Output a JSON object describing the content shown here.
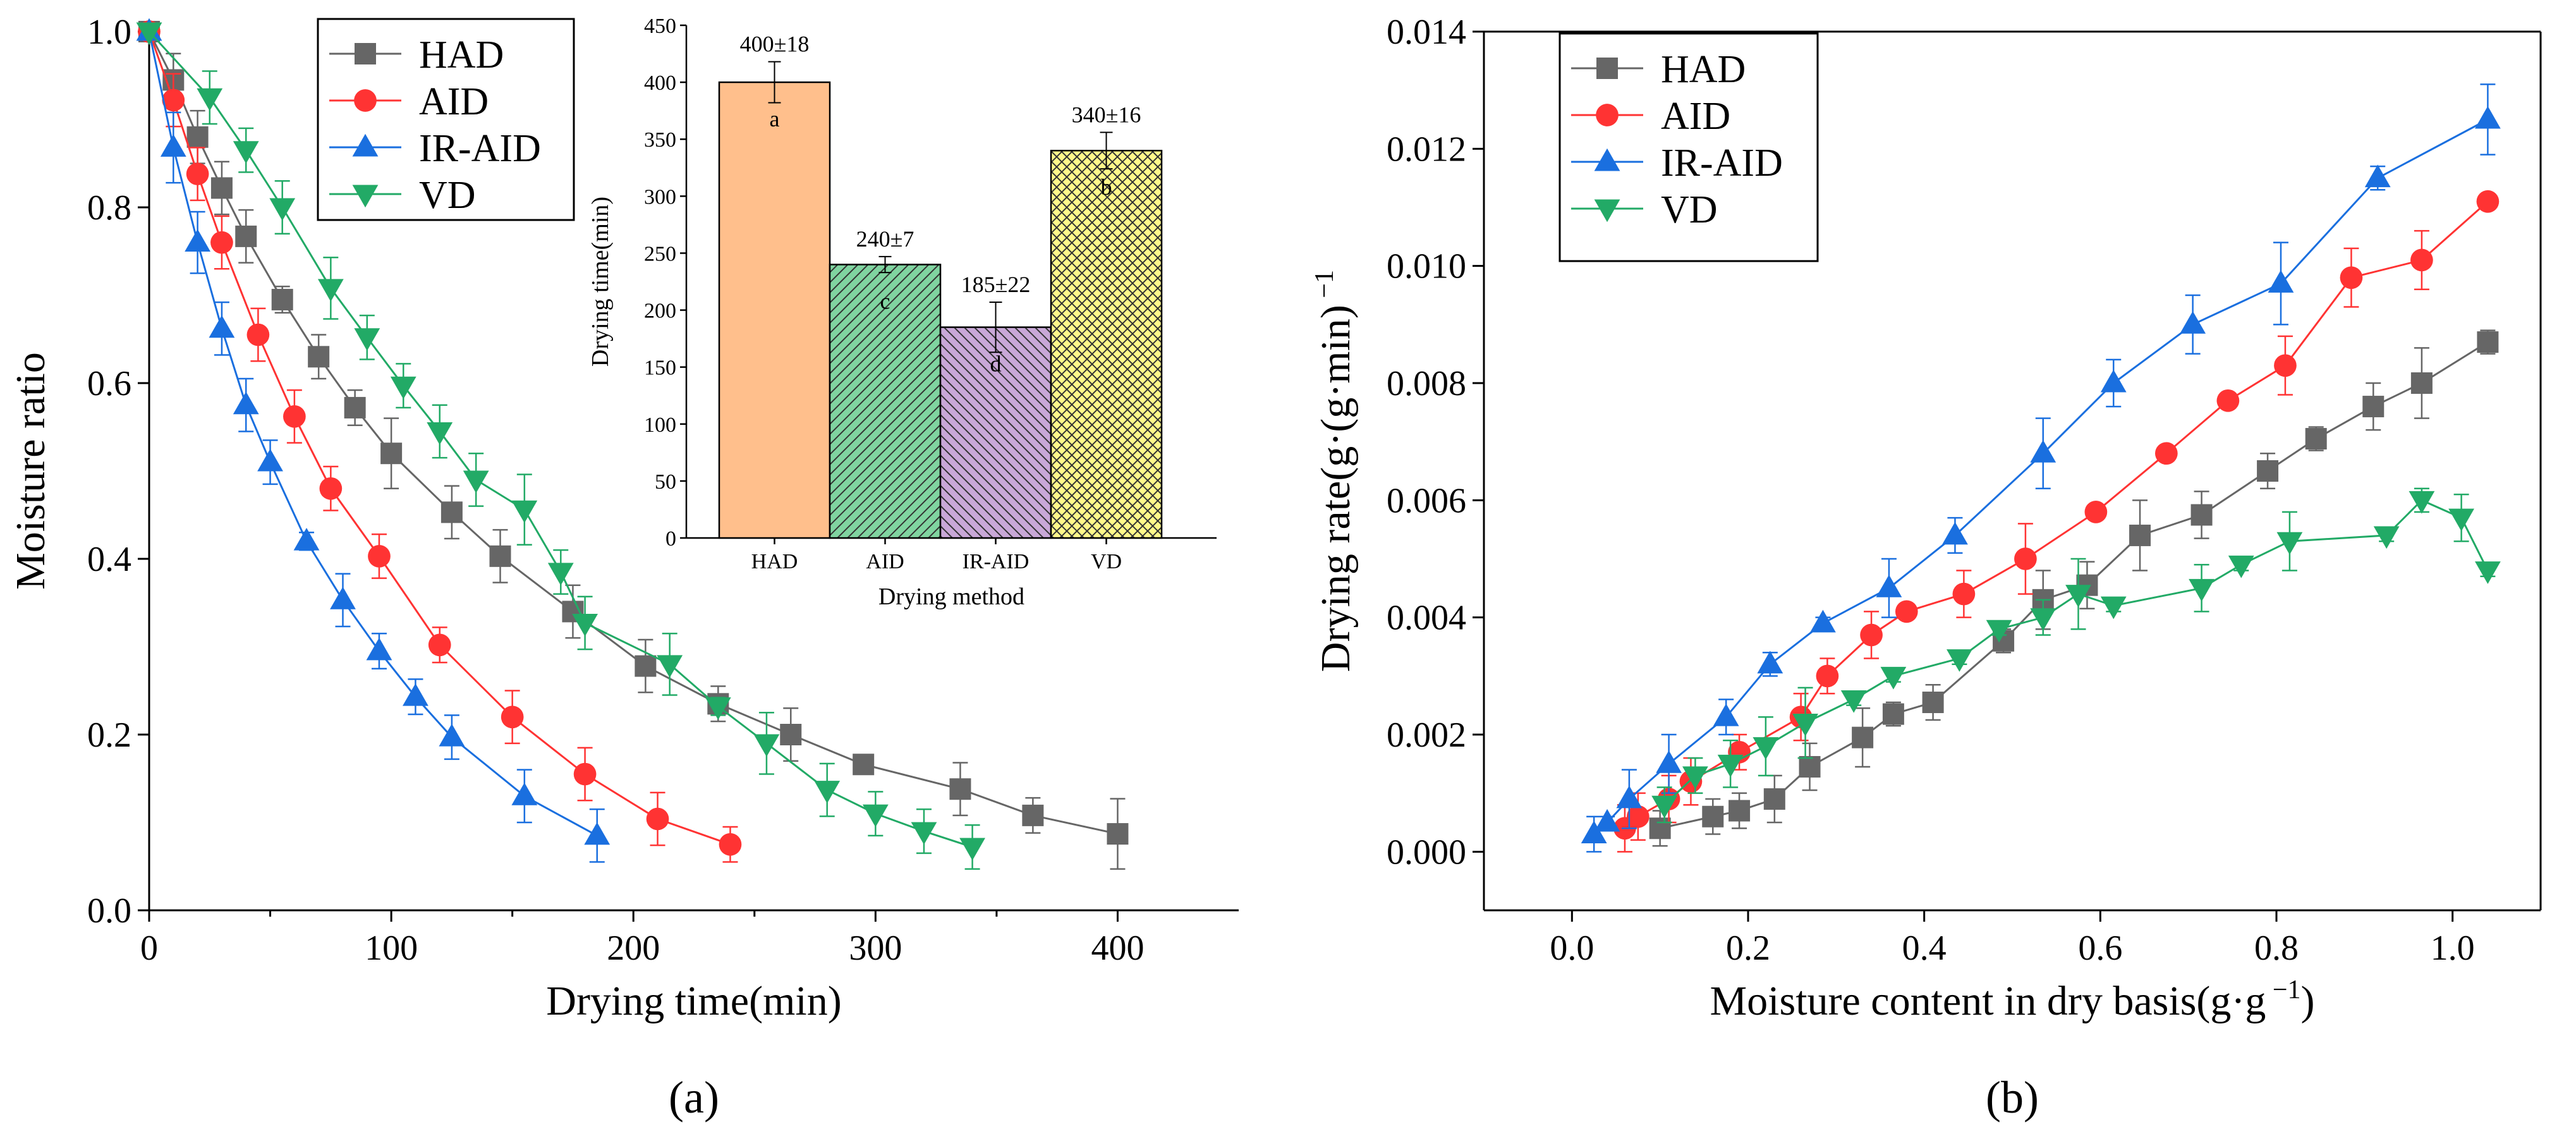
{
  "chart_data": [
    {
      "id": "a",
      "panel_label": "(a)",
      "type": "line",
      "xlabel": "Drying time(min)",
      "ylabel": "Moisture ratio",
      "xlim": [
        0,
        450
      ],
      "ylim": [
        0,
        1.0
      ],
      "xticks": [
        "0",
        "100",
        "200",
        "300",
        "400"
      ],
      "yticks": [
        "0.0",
        "0.2",
        "0.4",
        "0.6",
        "0.8",
        "1.0"
      ],
      "legend_position": "top-left",
      "series": [
        {
          "name": "HAD",
          "color": "#666666",
          "marker": "square",
          "x": [
            0,
            10,
            20,
            30,
            40,
            55,
            70,
            85,
            100,
            125,
            145,
            175,
            205,
            235,
            265,
            295,
            335,
            365,
            400
          ],
          "y": [
            1.0,
            0.945,
            0.88,
            0.822,
            0.767,
            0.695,
            0.63,
            0.572,
            0.52,
            0.453,
            0.403,
            0.34,
            0.278,
            0.235,
            0.2,
            0.166,
            0.138,
            0.108,
            0.087
          ],
          "err": [
            0,
            0.03,
            0.03,
            0.03,
            0.03,
            0.015,
            0.025,
            0.02,
            0.04,
            0.03,
            0.03,
            0.03,
            0.03,
            0.02,
            0.03,
            0.01,
            0.03,
            0.02,
            0.04
          ]
        },
        {
          "name": "AID",
          "color": "#ff3333",
          "marker": "circle",
          "x": [
            0,
            10,
            20,
            30,
            45,
            60,
            75,
            95,
            120,
            150,
            180,
            210,
            240
          ],
          "y": [
            1.0,
            0.922,
            0.838,
            0.76,
            0.655,
            0.562,
            0.48,
            0.403,
            0.302,
            0.22,
            0.155,
            0.104,
            0.075
          ],
          "err": [
            0,
            0.03,
            0.03,
            0.03,
            0.03,
            0.03,
            0.025,
            0.025,
            0.02,
            0.03,
            0.03,
            0.03,
            0.02
          ]
        },
        {
          "name": "IR-AID",
          "color": "#1a6fdf",
          "marker": "triangle-up",
          "x": [
            0,
            10,
            20,
            30,
            40,
            50,
            65,
            80,
            95,
            110,
            125,
            155,
            185
          ],
          "y": [
            1.0,
            0.868,
            0.76,
            0.662,
            0.575,
            0.51,
            0.42,
            0.353,
            0.295,
            0.243,
            0.197,
            0.13,
            0.085
          ],
          "err": [
            0,
            0.04,
            0.035,
            0.03,
            0.03,
            0.025,
            0.01,
            0.03,
            0.02,
            0.02,
            0.025,
            0.03,
            0.03
          ]
        },
        {
          "name": "VD",
          "color": "#22aa66",
          "marker": "triangle-down",
          "x": [
            0,
            25,
            40,
            55,
            75,
            90,
            105,
            120,
            135,
            155,
            170,
            180,
            215,
            235,
            255,
            280,
            300,
            320,
            340
          ],
          "y": [
            1.0,
            0.925,
            0.865,
            0.8,
            0.708,
            0.652,
            0.597,
            0.545,
            0.49,
            0.456,
            0.385,
            0.327,
            0.28,
            0.232,
            0.19,
            0.137,
            0.11,
            0.09,
            0.072
          ],
          "err": [
            0,
            0.03,
            0.025,
            0.03,
            0.035,
            0.025,
            0.025,
            0.03,
            0.03,
            0.04,
            0.025,
            0.03,
            0.035,
            0.01,
            0.035,
            0.03,
            0.025,
            0.025,
            0.025
          ]
        }
      ]
    },
    {
      "id": "inset",
      "type": "bar",
      "xlabel": "Drying method",
      "ylabel": "Drying time(min)",
      "ylim": [
        0,
        450
      ],
      "yticks": [
        "0",
        "50",
        "100",
        "150",
        "200",
        "250",
        "300",
        "350",
        "400",
        "450"
      ],
      "categories": [
        "HAD",
        "AID",
        "IR-AID",
        "VD"
      ],
      "values": [
        400,
        240,
        185,
        340
      ],
      "errors": [
        18,
        7,
        22,
        16
      ],
      "value_labels": [
        "400±18",
        "240±7",
        "185±22",
        "340±16"
      ],
      "letters": [
        "a",
        "c",
        "d",
        "b"
      ],
      "colors": [
        "#ffbf8c",
        "#80d4a0",
        "#c9a8d8",
        "#fff88a"
      ],
      "hatch": [
        "none",
        "diagonal",
        "diagonal-reverse",
        "crosshatch"
      ]
    },
    {
      "id": "b",
      "panel_label": "(b)",
      "type": "line",
      "xlabel": "Moisture content in dry basis(g·g",
      "xlabel_sup": "−1",
      "xlabel_end": ")",
      "ylabel": "Drying rate(g·(g·min)",
      "ylabel_sup": "−1",
      "xlim": [
        -0.1,
        1.1
      ],
      "ylim": [
        -0.001,
        0.014
      ],
      "xticks": [
        "0.0",
        "0.2",
        "0.4",
        "0.6",
        "0.8",
        "1.0"
      ],
      "yticks": [
        "0.000",
        "0.002",
        "0.004",
        "0.006",
        "0.008",
        "0.010",
        "0.012",
        "0.014"
      ],
      "legend_position": "top-left",
      "series": [
        {
          "name": "HAD",
          "color": "#666666",
          "marker": "square",
          "x": [
            0.1,
            0.16,
            0.19,
            0.23,
            0.27,
            0.33,
            0.365,
            0.41,
            0.49,
            0.535,
            0.585,
            0.645,
            0.715,
            0.79,
            0.845,
            0.91,
            0.965,
            1.04
          ],
          "y": [
            0.0004,
            0.0006,
            0.0007,
            0.0009,
            0.00145,
            0.00195,
            0.00235,
            0.00255,
            0.0036,
            0.0043,
            0.00455,
            0.0054,
            0.00575,
            0.0065,
            0.00705,
            0.0076,
            0.008,
            0.0087
          ],
          "err": [
            0.0003,
            0.0003,
            0.0003,
            0.0004,
            0.0004,
            0.0005,
            0.0002,
            0.0003,
            0.0002,
            0.0005,
            0.0004,
            0.0006,
            0.0004,
            0.0003,
            0.0002,
            0.0004,
            0.0006,
            0.0002
          ]
        },
        {
          "name": "AID",
          "color": "#ff3333",
          "marker": "circle",
          "x": [
            0.06,
            0.075,
            0.11,
            0.135,
            0.19,
            0.26,
            0.29,
            0.34,
            0.38,
            0.445,
            0.515,
            0.595,
            0.675,
            0.745,
            0.81,
            0.885,
            0.965,
            1.04
          ],
          "y": [
            0.0004,
            0.0006,
            0.0009,
            0.0012,
            0.0017,
            0.0023,
            0.003,
            0.0037,
            0.0041,
            0.0044,
            0.005,
            0.0058,
            0.0068,
            0.0077,
            0.0083,
            0.0098,
            0.0101,
            0.0111
          ],
          "err": [
            0.0004,
            0.0004,
            0.0004,
            0.0004,
            0.0003,
            0.0004,
            0.0003,
            0.0004,
            0.0001,
            0.0004,
            0.0006,
            0.0001,
            0.0001,
            0.0001,
            0.0005,
            0.0005,
            0.0005,
            0.0001
          ]
        },
        {
          "name": "IR-AID",
          "color": "#1a6fdf",
          "marker": "triangle-up",
          "x": [
            0.025,
            0.04,
            0.065,
            0.11,
            0.175,
            0.225,
            0.285,
            0.36,
            0.435,
            0.535,
            0.615,
            0.705,
            0.805,
            0.915,
            1.04
          ],
          "y": [
            0.0003,
            0.0005,
            0.0009,
            0.0015,
            0.0023,
            0.0032,
            0.0039,
            0.0045,
            0.0054,
            0.0068,
            0.008,
            0.009,
            0.0097,
            0.0115,
            0.0125
          ],
          "err": [
            0.0003,
            0.0001,
            0.0005,
            0.0005,
            0.0003,
            0.0002,
            0.0001,
            0.0005,
            0.0003,
            0.0006,
            0.0004,
            0.0005,
            0.0007,
            0.0002,
            0.0006
          ]
        },
        {
          "name": "VD",
          "color": "#22aa66",
          "marker": "triangle-down",
          "x": [
            0.105,
            0.14,
            0.18,
            0.22,
            0.265,
            0.32,
            0.365,
            0.44,
            0.485,
            0.535,
            0.575,
            0.615,
            0.715,
            0.76,
            0.815,
            0.925,
            0.965,
            1.01,
            1.04
          ],
          "y": [
            0.0008,
            0.0013,
            0.0015,
            0.0018,
            0.0022,
            0.0026,
            0.003,
            0.0033,
            0.0038,
            0.004,
            0.0044,
            0.0042,
            0.0045,
            0.0049,
            0.0053,
            0.0054,
            0.006,
            0.0057,
            0.0048
          ],
          "err": [
            0.0003,
            0.0003,
            0.0004,
            0.0005,
            0.0006,
            0.0001,
            0.0001,
            0.0001,
            0.0001,
            0.0003,
            0.0006,
            0.0001,
            0.0004,
            0.0001,
            0.0005,
            0.0001,
            0.0002,
            0.0004,
            0.0001
          ]
        }
      ]
    }
  ]
}
